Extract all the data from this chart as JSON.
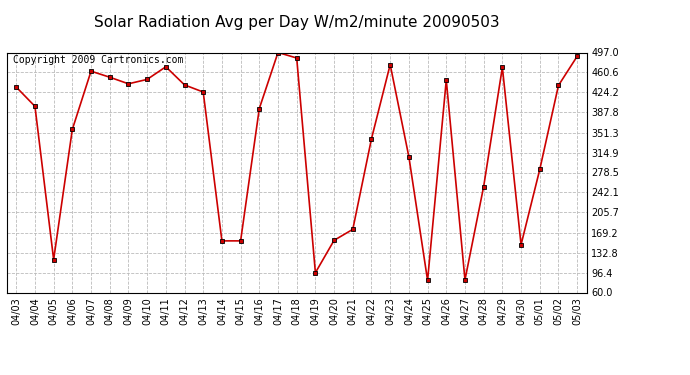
{
  "title": "Solar Radiation Avg per Day W/m2/minute 20090503",
  "copyright": "Copyright 2009 Cartronics.com",
  "dates": [
    "04/03",
    "04/04",
    "04/05",
    "04/06",
    "04/07",
    "04/08",
    "04/09",
    "04/10",
    "04/11",
    "04/12",
    "04/13",
    "04/14",
    "04/15",
    "04/16",
    "04/17",
    "04/18",
    "04/19",
    "04/20",
    "04/21",
    "04/22",
    "04/23",
    "04/24",
    "04/25",
    "04/26",
    "04/27",
    "04/28",
    "04/29",
    "04/30",
    "05/01",
    "05/02",
    "05/03"
  ],
  "values": [
    434,
    399,
    120,
    357,
    463,
    452,
    440,
    448,
    471,
    438,
    425,
    154,
    154,
    395,
    497,
    487,
    96,
    155,
    175,
    340,
    475,
    307,
    82,
    447,
    83,
    253,
    470,
    147,
    284,
    437,
    490
  ],
  "line_color": "#cc0000",
  "marker_color": "#000000",
  "bg_color": "#ffffff",
  "plot_bg_color": "#ffffff",
  "grid_color": "#bbbbbb",
  "ylim": [
    60.0,
    497.0
  ],
  "yticks": [
    60.0,
    96.4,
    132.8,
    169.2,
    205.7,
    242.1,
    278.5,
    314.9,
    351.3,
    387.8,
    424.2,
    460.6,
    497.0
  ],
  "title_fontsize": 11,
  "copyright_fontsize": 7
}
